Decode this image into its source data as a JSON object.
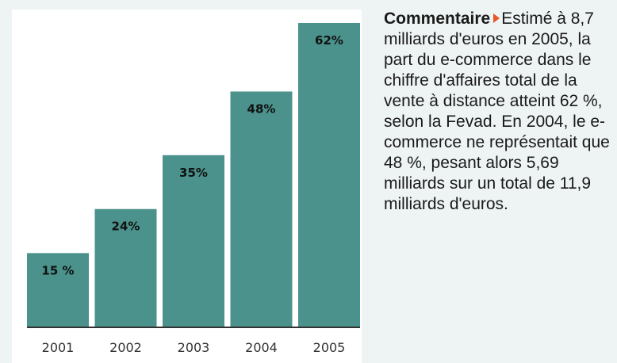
{
  "chart_data": {
    "type": "bar",
    "categories": [
      "2001",
      "2002",
      "2003",
      "2004",
      "2005"
    ],
    "values": [
      15,
      24,
      35,
      48,
      62
    ],
    "data_labels": [
      "15 %",
      "24%",
      "35%",
      "48%",
      "62%"
    ],
    "title": "",
    "xlabel": "",
    "ylabel": "",
    "ylim": [
      0,
      62
    ],
    "grid": false,
    "bar_color": "#4a928b",
    "background": "#ffffff"
  },
  "comment": {
    "title": "Commentaire",
    "text": "Estimé à 8,7 milliards d'euros en 2005, la part du e-commerce dans le chiffre d'affaires total de la vente à distance atteint 62 %, selon la Fevad. En 2004, le e-commerce ne représentait que 48 %, pesant alors 5,69 milliards sur un total de 11,9 milliards d'euros.",
    "arrow_icon": "triangle-right-icon",
    "arrow_color": "#e8572b"
  }
}
